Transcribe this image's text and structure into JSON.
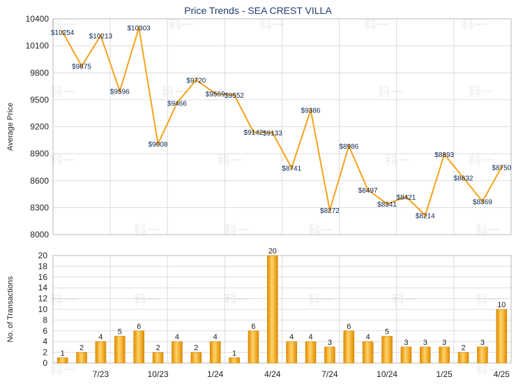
{
  "chart_data": [
    {
      "type": "line",
      "title": "Price Trends - SEA CREST VILLA",
      "ylabel": "Average Price",
      "ylim": [
        8000,
        10400
      ],
      "yticks": [
        8000,
        8300,
        8600,
        8900,
        9200,
        9500,
        9800,
        10100,
        10400
      ],
      "grid": true,
      "x_tick_labels": [
        "7/23",
        "10/23",
        "1/24",
        "4/24",
        "7/24",
        "10/24",
        "1/25",
        "4/25"
      ],
      "values": [
        10254,
        9875,
        10213,
        9596,
        10303,
        9008,
        9466,
        9720,
        9569,
        9552,
        9142,
        9133,
        8741,
        9386,
        8272,
        8986,
        8497,
        8341,
        8421,
        8214,
        8893,
        8632,
        8369,
        8750
      ],
      "labels": [
        "$10254",
        "$9875",
        "$10213",
        "$9596",
        "$10303",
        "$9008",
        "$9466",
        "$9720",
        "$9569",
        "$9552",
        "$9142",
        "$9133",
        "$8741",
        "$9386",
        "$8272",
        "$8986",
        "$8497",
        "$8341",
        "$8421",
        "$8214",
        "$8893",
        "$8632",
        "$8369",
        "$8750"
      ],
      "color": "#f5a21b"
    },
    {
      "type": "bar",
      "ylabel": "No. of Transactions",
      "ylim": [
        0,
        20
      ],
      "yticks": [
        0,
        2,
        4,
        6,
        8,
        10,
        12,
        14,
        16,
        18,
        20
      ],
      "grid": true,
      "x_tick_labels": [
        "7/23",
        "10/23",
        "1/24",
        "4/24",
        "7/24",
        "10/24",
        "1/25",
        "4/25"
      ],
      "values": [
        1,
        2,
        4,
        5,
        6,
        2,
        4,
        2,
        4,
        1,
        6,
        20,
        4,
        4,
        3,
        6,
        4,
        5,
        3,
        3,
        3,
        2,
        3,
        10
      ],
      "color": "#f5a21b"
    }
  ],
  "watermark": "科一"
}
